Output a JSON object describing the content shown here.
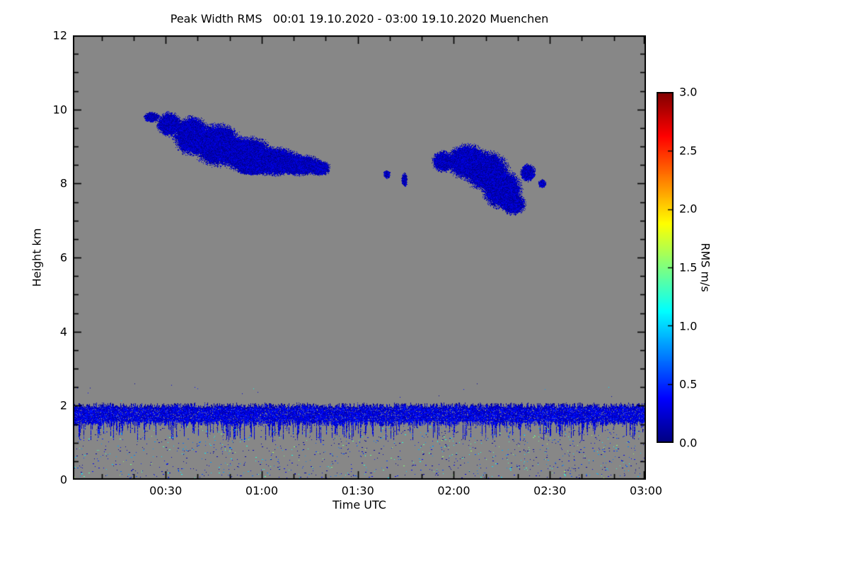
{
  "chart_data": {
    "type": "heatmap",
    "title": "Peak Width RMS   00:01 19.10.2020 - 03:00 19.10.2020 Muenchen",
    "xlabel": "Time UTC",
    "ylabel": "Height km",
    "colorbar_label": "RMS m/s",
    "x_range_minutes": [
      1,
      180
    ],
    "x_minor_step_min": 10,
    "x_ticks": [
      {
        "minute": 30,
        "label": "00:30"
      },
      {
        "minute": 60,
        "label": "01:00"
      },
      {
        "minute": 90,
        "label": "01:30"
      },
      {
        "minute": 120,
        "label": "02:00"
      },
      {
        "minute": 150,
        "label": "02:30"
      },
      {
        "minute": 180,
        "label": "03:00"
      }
    ],
    "y_range_km": [
      0,
      12
    ],
    "y_minor_step_km": 0.5,
    "y_ticks": [
      {
        "km": 0,
        "label": "0"
      },
      {
        "km": 2,
        "label": "2"
      },
      {
        "km": 4,
        "label": "4"
      },
      {
        "km": 6,
        "label": "6"
      },
      {
        "km": 8,
        "label": "8"
      },
      {
        "km": 10,
        "label": "10"
      },
      {
        "km": 12,
        "label": "12"
      }
    ],
    "colorbar": {
      "min": 0.0,
      "max": 3.0,
      "colormap": "jet",
      "ticks": [
        {
          "value": 0.0,
          "label": "0.0"
        },
        {
          "value": 0.5,
          "label": "0.5"
        },
        {
          "value": 1.0,
          "label": "1.0"
        },
        {
          "value": 1.5,
          "label": "1.5"
        },
        {
          "value": 2.0,
          "label": "2.0"
        },
        {
          "value": 2.5,
          "label": "2.5"
        },
        {
          "value": 3.0,
          "label": "3.0"
        }
      ]
    },
    "colors": {
      "no_data_gray": "#878787",
      "frame": "#000000",
      "page_bg": "#ffffff"
    },
    "features": {
      "clouds": [
        {
          "name": "cloud-layer-1",
          "time_span": "00:24-01:21",
          "height_span_km": [
            8.2,
            10.0
          ],
          "value_range": [
            0.0,
            0.35
          ],
          "ellipses": [
            [
              25.5,
              9.8,
              2.5,
              0.15
            ],
            [
              31,
              9.6,
              4,
              0.35
            ],
            [
              38,
              9.3,
              6,
              0.55
            ],
            [
              46,
              9.05,
              8,
              0.6
            ],
            [
              55,
              8.8,
              9,
              0.5
            ],
            [
              64,
              8.6,
              9,
              0.4
            ],
            [
              72,
              8.5,
              7,
              0.3
            ],
            [
              78,
              8.42,
              3.5,
              0.22
            ],
            [
              57,
              8.35,
              5,
              0.12
            ]
          ]
        },
        {
          "name": "cloud-layer-2",
          "time_span": "01:39-02:28",
          "height_span_km": [
            7.2,
            9.0
          ],
          "value_range": [
            0.0,
            0.35
          ],
          "ellipses": [
            [
              99,
              8.25,
              1.2,
              0.12
            ],
            [
              104.5,
              8.1,
              1.0,
              0.2
            ],
            [
              116.5,
              8.6,
              3.5,
              0.3
            ],
            [
              124,
              8.6,
              6.5,
              0.5
            ],
            [
              130,
              8.35,
              7.5,
              0.55
            ],
            [
              135,
              7.85,
              6.5,
              0.55
            ],
            [
              138.5,
              7.45,
              4,
              0.3
            ],
            [
              143,
              8.3,
              2.5,
              0.25
            ],
            [
              147.5,
              8.0,
              1.3,
              0.12
            ]
          ]
        }
      ],
      "boundary_layer": {
        "name": "boundary-layer-band",
        "top_km": 2.0,
        "top_noise_km": 0.07,
        "base_km": 1.6,
        "base_noise_km": 0.15,
        "spike_prob": 0.3,
        "spike_max_km": 0.45,
        "fill_prob": 0.93,
        "value_range": [
          0.05,
          0.5
        ]
      },
      "speckle": {
        "name": "near-surface-speckle",
        "count": 1300,
        "h_range_km": [
          0.02,
          1.45
        ],
        "value_min": 0.08,
        "value_span": 1.55,
        "value_exponent": 2.2,
        "above_band": {
          "count": 18,
          "h_range_km": [
            2.08,
            2.6
          ]
        }
      }
    }
  }
}
